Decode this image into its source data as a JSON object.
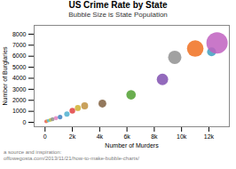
{
  "chart_data": {
    "type": "scatter",
    "title": "US Crime Rate by State",
    "subtitle": "Bubble Size is State Population",
    "xlabel": "Number of Murders",
    "ylabel": "Number of Burglaries",
    "source": "a source and inspiration:\noffowegosta.com/2013/11/21/how-to-make-bubble-charts/",
    "xlim": [
      -800,
      13500
    ],
    "ylim": [
      -400,
      8800
    ],
    "xticks": [
      0,
      {
        "value": 2000,
        "label": "2k"
      },
      {
        "value": 4000,
        "label": "4k"
      },
      {
        "value": 6000,
        "label": "6k"
      },
      {
        "value": 8000,
        "label": "8k"
      },
      {
        "value": 10000,
        "label": "10k"
      },
      {
        "value": 12000,
        "label": "12k"
      }
    ],
    "yticks": [
      0,
      1000,
      2000,
      3000,
      4000,
      5000,
      6000,
      7000,
      8000
    ],
    "x": [
      80,
      150,
      250,
      400,
      550,
      800,
      1100,
      1600,
      2000,
      2400,
      2900,
      4200,
      6300,
      8600,
      9500,
      11000,
      12200,
      12600
    ],
    "values": [
      80,
      120,
      160,
      220,
      280,
      380,
      480,
      750,
      1050,
      1300,
      1500,
      1700,
      2500,
      3900,
      5900,
      6700,
      6400,
      7200
    ],
    "sizes": [
      8,
      6,
      7,
      9,
      10,
      11,
      13,
      18,
      20,
      22,
      30,
      38,
      55,
      80,
      110,
      170,
      50,
      280
    ],
    "colors": [
      "#e05050",
      "#f0a040",
      "#50c0e0",
      "#c0c040",
      "#909090",
      "#e080c0",
      "#4080c0",
      "#50b0d0",
      "#e04040",
      "#d0b030",
      "#c09040",
      "#806040",
      "#50a030",
      "#8050b0",
      "#909090",
      "#f07020",
      "#40a0c0",
      "#c060c0"
    ]
  }
}
